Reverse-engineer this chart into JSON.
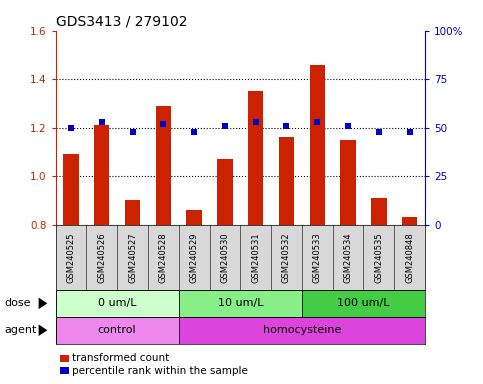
{
  "title": "GDS3413 / 279102",
  "samples": [
    "GSM240525",
    "GSM240526",
    "GSM240527",
    "GSM240528",
    "GSM240529",
    "GSM240530",
    "GSM240531",
    "GSM240532",
    "GSM240533",
    "GSM240534",
    "GSM240535",
    "GSM240848"
  ],
  "transformed_count": [
    1.09,
    1.21,
    0.9,
    1.29,
    0.86,
    1.07,
    1.35,
    1.16,
    1.46,
    1.15,
    0.91,
    0.83
  ],
  "percentile_rank": [
    50,
    53,
    48,
    52,
    48,
    51,
    53,
    51,
    53,
    51,
    48,
    48
  ],
  "ylim_left": [
    0.8,
    1.6
  ],
  "ylim_right": [
    0,
    100
  ],
  "yticks_left": [
    0.8,
    1.0,
    1.2,
    1.4,
    1.6
  ],
  "yticks_right": [
    0,
    25,
    50,
    75,
    100
  ],
  "ytick_labels_left": [
    "0.8",
    "1.0",
    "1.2",
    "1.4",
    "1.6"
  ],
  "ytick_labels_right": [
    "0",
    "25",
    "50",
    "75",
    "100%"
  ],
  "bar_color": "#cc2200",
  "dot_color": "#0000cc",
  "background_color": "#ffffff",
  "dose_groups": [
    {
      "label": "0 um/L",
      "start": 0,
      "end": 4,
      "color": "#ccffcc"
    },
    {
      "label": "10 um/L",
      "start": 4,
      "end": 8,
      "color": "#88ee88"
    },
    {
      "label": "100 um/L",
      "start": 8,
      "end": 12,
      "color": "#44cc44"
    }
  ],
  "agent_groups": [
    {
      "label": "control",
      "start": 0,
      "end": 4,
      "color": "#ee88ee"
    },
    {
      "label": "homocysteine",
      "start": 4,
      "end": 12,
      "color": "#dd44dd"
    }
  ],
  "dose_label": "dose",
  "agent_label": "agent",
  "legend_items": [
    {
      "color": "#cc2200",
      "label": "transformed count"
    },
    {
      "color": "#0000cc",
      "label": "percentile rank within the sample"
    }
  ],
  "title_fontsize": 10,
  "tick_fontsize": 7.5,
  "sample_fontsize": 6,
  "bar_bottom": 0.8,
  "grid_dotted_at": [
    1.0,
    1.2,
    1.4
  ],
  "bar_width": 0.5
}
